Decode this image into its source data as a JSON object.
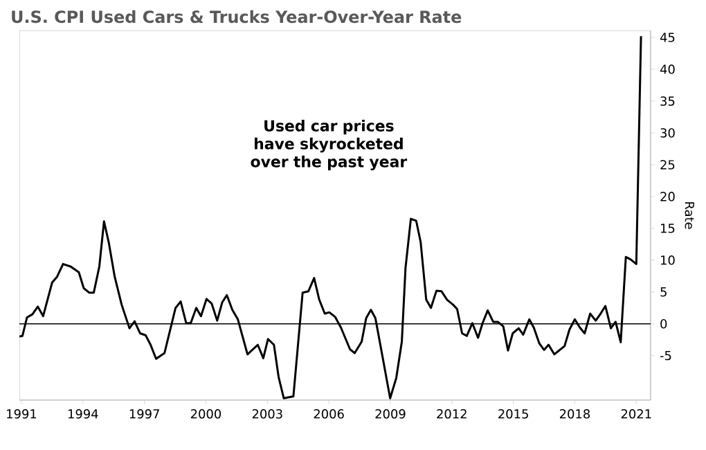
{
  "chart_data": {
    "type": "line",
    "title": "U.S. CPI Used Cars & Trucks Year-Over-Year Rate",
    "ylabel": "Rate",
    "annotations": [
      "Used car prices have skyrocketed over the past year"
    ],
    "xlim": [
      1990.9,
      2021.7
    ],
    "xticks": [
      1991,
      1994,
      1997,
      2000,
      2003,
      2006,
      2009,
      2012,
      2015,
      2018,
      2021
    ],
    "ylim": [
      -12,
      46.1
    ],
    "yticks": [
      -5,
      0,
      5,
      10,
      15,
      20,
      25,
      30,
      35,
      40,
      45
    ],
    "ref_lines": [
      {
        "axis": "y",
        "value": 0,
        "color": "#000000"
      }
    ],
    "grid": false,
    "marker": "none",
    "line_style": "solid",
    "series": [
      {
        "color": "#000000",
        "x": [
          1990.9,
          1991.05,
          1991.27,
          1991.54,
          1991.8,
          1992.06,
          1992.5,
          1992.74,
          1993.03,
          1993.4,
          1993.8,
          1994.04,
          1994.3,
          1994.53,
          1994.8,
          1995.03,
          1995.26,
          1995.55,
          1995.89,
          1996.27,
          1996.52,
          1996.79,
          1997.06,
          1997.3,
          1997.57,
          1997.98,
          1998.52,
          1998.77,
          1999.04,
          1999.26,
          1999.53,
          1999.76,
          2000.03,
          2000.28,
          2000.55,
          2000.8,
          2001.02,
          2001.29,
          2001.56,
          2002.03,
          2002.53,
          2002.8,
          2003.03,
          2003.32,
          2003.55,
          2003.8,
          2004.27,
          2004.72,
          2005.0,
          2005.28,
          2005.53,
          2005.8,
          2006.02,
          2006.3,
          2006.59,
          2007.03,
          2007.26,
          2007.6,
          2007.82,
          2008.05,
          2008.27,
          2008.5,
          2008.99,
          2009.29,
          2009.56,
          2009.74,
          2010.0,
          2010.26,
          2010.48,
          2010.75,
          2010.98,
          2011.25,
          2011.5,
          2011.76,
          2012.06,
          2012.26,
          2012.5,
          2012.73,
          2013.0,
          2013.28,
          2013.5,
          2013.75,
          2014.02,
          2014.24,
          2014.51,
          2014.74,
          2014.97,
          2015.26,
          2015.48,
          2015.78,
          2016.0,
          2016.27,
          2016.5,
          2016.72,
          2017.0,
          2017.5,
          2017.74,
          2018.0,
          2018.25,
          2018.48,
          2018.75,
          2019.02,
          2019.24,
          2019.49,
          2019.76,
          2019.99,
          2020.24,
          2020.49,
          2020.73,
          2021.0,
          2021.23
        ],
        "values": [
          -2.0,
          -1.9,
          1.0,
          1.5,
          2.7,
          1.2,
          6.5,
          7.4,
          9.4,
          9.0,
          8.1,
          5.6,
          4.9,
          4.9,
          9.0,
          16.1,
          12.8,
          7.4,
          3.0,
          -0.7,
          0.4,
          -1.5,
          -1.8,
          -3.3,
          -5.5,
          -4.6,
          2.5,
          3.5,
          0.1,
          0.1,
          2.5,
          1.2,
          3.9,
          3.2,
          0.5,
          3.4,
          4.5,
          2.2,
          0.7,
          -4.8,
          -3.3,
          -5.4,
          -2.4,
          -3.3,
          -8.4,
          -11.7,
          -11.4,
          4.9,
          5.1,
          7.2,
          3.8,
          1.6,
          1.8,
          1.1,
          -0.6,
          -4.0,
          -4.6,
          -2.8,
          0.9,
          2.2,
          0.9,
          -3.1,
          -11.7,
          -8.5,
          -2.8,
          8.8,
          16.5,
          16.2,
          12.8,
          3.8,
          2.5,
          5.2,
          5.1,
          3.8,
          3.0,
          2.3,
          -1.5,
          -1.9,
          0.1,
          -2.2,
          0.1,
          2.1,
          0.3,
          0.3,
          -0.4,
          -4.2,
          -1.5,
          -0.7,
          -1.7,
          0.7,
          -0.6,
          -3.1,
          -4.1,
          -3.3,
          -4.8,
          -3.5,
          -0.9,
          0.7,
          -0.6,
          -1.5,
          1.6,
          0.5,
          1.5,
          2.8,
          -0.7,
          0.3,
          -2.9,
          10.5,
          10.1,
          9.4,
          45.2
        ]
      }
    ]
  }
}
